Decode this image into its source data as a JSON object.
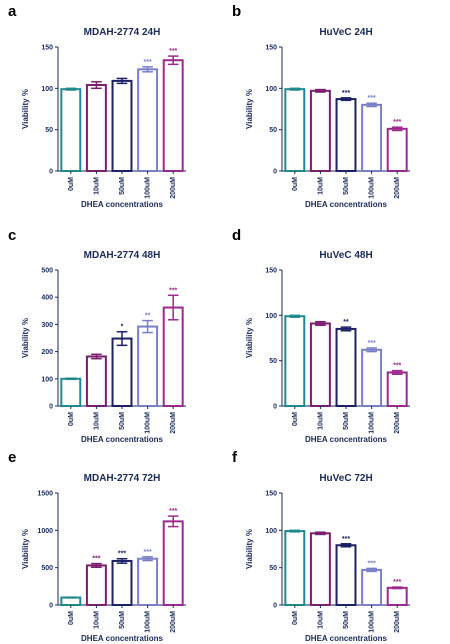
{
  "figure": {
    "xlabel": "DHEA concentrations",
    "ylabel": "Viability %",
    "categories": [
      "0uM",
      "10uM",
      "50uM",
      "100uM",
      "200uM"
    ],
    "bar_colors": [
      "#1e8a8c",
      "#7a1f6e",
      "#1c2166",
      "#7b7fc8",
      "#9c2a8e"
    ],
    "text_color": "#1a2a5a"
  },
  "chart_data": [
    {
      "panel": "a",
      "type": "bar",
      "title": "MDAH-2774 24H",
      "ylim": [
        0,
        150
      ],
      "yticks": [
        0,
        50,
        100,
        150
      ],
      "values": [
        99,
        104,
        109,
        123,
        134
      ],
      "errors": [
        1,
        4,
        3,
        3,
        5
      ],
      "significance": [
        "",
        "",
        "",
        "***",
        "***"
      ]
    },
    {
      "panel": "b",
      "type": "bar",
      "title": "HuVeC 24H",
      "ylim": [
        0,
        150
      ],
      "yticks": [
        0,
        50,
        100,
        150
      ],
      "values": [
        99,
        97,
        87,
        80,
        51
      ],
      "errors": [
        1,
        1.5,
        1.5,
        2,
        2
      ],
      "significance": [
        "",
        "",
        "***",
        "***",
        "***"
      ]
    },
    {
      "panel": "c",
      "type": "bar",
      "title": "MDAH-2774 48H",
      "ylim": [
        0,
        500
      ],
      "yticks": [
        0,
        100,
        200,
        300,
        400,
        500
      ],
      "values": [
        100,
        182,
        248,
        292,
        362
      ],
      "errors": [
        2,
        8,
        25,
        22,
        45
      ],
      "significance": [
        "",
        "",
        "*",
        "**",
        "***"
      ]
    },
    {
      "panel": "d",
      "type": "bar",
      "title": "HuVeC 48H",
      "ylim": [
        0,
        150
      ],
      "yticks": [
        0,
        50,
        100,
        150
      ],
      "values": [
        99,
        91,
        85,
        62,
        37
      ],
      "errors": [
        1,
        2,
        2,
        2,
        2
      ],
      "significance": [
        "",
        "",
        "**",
        "***",
        "***"
      ]
    },
    {
      "panel": "e",
      "type": "bar",
      "title": "MDAH-2774 72H",
      "ylim": [
        0,
        1500
      ],
      "yticks": [
        0,
        500,
        1000,
        1500
      ],
      "values": [
        100,
        530,
        590,
        620,
        1120
      ],
      "errors": [
        5,
        25,
        30,
        25,
        70
      ],
      "significance": [
        "",
        "***",
        "***",
        "***",
        "***"
      ]
    },
    {
      "panel": "f",
      "type": "bar",
      "title": "HuVeC 72H",
      "ylim": [
        0,
        150
      ],
      "yticks": [
        0,
        50,
        100,
        150
      ],
      "values": [
        99,
        96,
        80,
        47,
        23
      ],
      "errors": [
        1,
        1.5,
        2,
        2,
        1
      ],
      "significance": [
        "",
        "",
        "***",
        "***",
        "***"
      ]
    }
  ]
}
